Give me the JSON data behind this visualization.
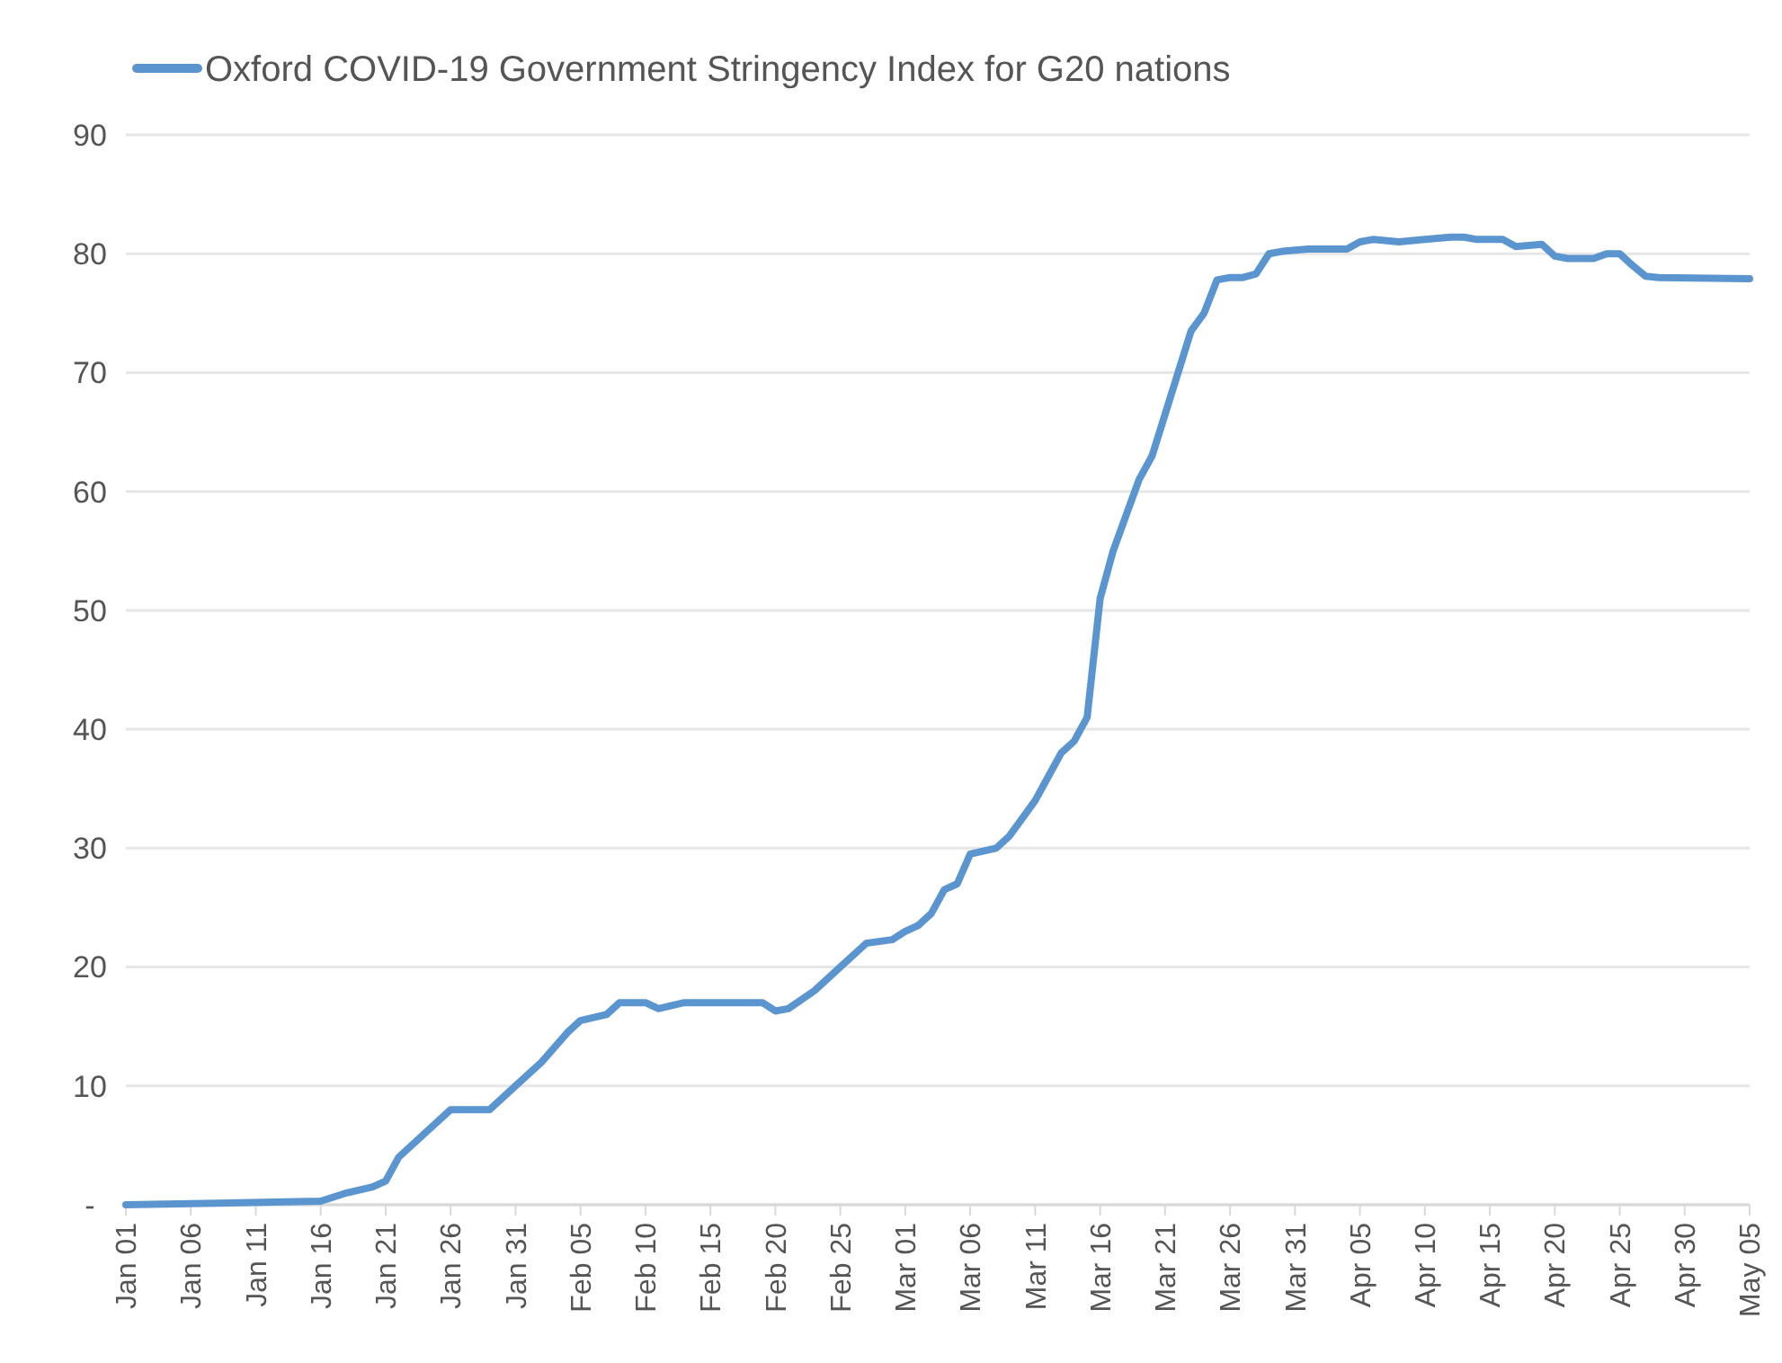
{
  "chart_data": {
    "type": "line",
    "legend": "top left",
    "grid": "y",
    "marker": "none",
    "line_style": "solid",
    "xlim": [
      "--01-01",
      "--05-05"
    ],
    "ylim": [
      0,
      90
    ],
    "yticks": [
      {
        "value": 0,
        "label": "-"
      },
      10,
      20,
      30,
      40,
      50,
      60,
      70,
      80,
      90
    ],
    "xticks": [
      {
        "value": "--01-01",
        "label": "Jan 01"
      },
      {
        "value": "--01-06",
        "label": "Jan 06"
      },
      {
        "value": "--01-11",
        "label": "Jan 11"
      },
      {
        "value": "--01-16",
        "label": "Jan 16"
      },
      {
        "value": "--01-21",
        "label": "Jan 21"
      },
      {
        "value": "--01-26",
        "label": "Jan 26"
      },
      {
        "value": "--01-31",
        "label": "Jan 31"
      },
      {
        "value": "--02-05",
        "label": "Feb 05"
      },
      {
        "value": "--02-10",
        "label": "Feb 10"
      },
      {
        "value": "--02-15",
        "label": "Feb 15"
      },
      {
        "value": "--02-20",
        "label": "Feb 20"
      },
      {
        "value": "--02-25",
        "label": "Feb 25"
      },
      {
        "value": "--03-01",
        "label": "Mar 01"
      },
      {
        "value": "--03-06",
        "label": "Mar 06"
      },
      {
        "value": "--03-11",
        "label": "Mar 11"
      },
      {
        "value": "--03-16",
        "label": "Mar 16"
      },
      {
        "value": "--03-21",
        "label": "Mar 21"
      },
      {
        "value": "--03-26",
        "label": "Mar 26"
      },
      {
        "value": "--03-31",
        "label": "Mar 31"
      },
      {
        "value": "--04-05",
        "label": "Apr 05"
      },
      {
        "value": "--04-10",
        "label": "Apr 10"
      },
      {
        "value": "--04-15",
        "label": "Apr 15"
      },
      {
        "value": "--04-20",
        "label": "Apr 20"
      },
      {
        "value": "--04-25",
        "label": "Apr 25"
      },
      {
        "value": "--04-30",
        "label": "Apr 30"
      },
      {
        "value": "--05-05",
        "label": "May 05"
      }
    ],
    "x": [
      "--01-01",
      "--01-16",
      "--01-18",
      "--01-20",
      "--01-21",
      "--01-22",
      "--01-23",
      "--01-24",
      "--01-26",
      "--01-29",
      "--01-31",
      "--02-02",
      "--02-04",
      "--02-05",
      "--02-07",
      "--02-08",
      "--02-10",
      "--02-11",
      "--02-13",
      "--02-19",
      "--02-20",
      "--02-21",
      "--02-23",
      "--02-24",
      "--02-25",
      "--02-27",
      "--02-29",
      "--03-01",
      "--03-02",
      "--03-03",
      "--03-04",
      "--03-05",
      "--03-06",
      "--03-08",
      "--03-09",
      "--03-10",
      "--03-11",
      "--03-12",
      "--03-13",
      "--03-14",
      "--03-15",
      "--03-16",
      "--03-17",
      "--03-18",
      "--03-19",
      "--03-20",
      "--03-21",
      "--03-22",
      "--03-23",
      "--03-24",
      "--03-25",
      "--03-26",
      "--03-27",
      "--03-28",
      "--03-29",
      "--03-30",
      "--04-01",
      "--04-04",
      "--04-05",
      "--04-06",
      "--04-08",
      "--04-10",
      "--04-12",
      "--04-13",
      "--04-14",
      "--04-16",
      "--04-17",
      "--04-19",
      "--04-20",
      "--04-21",
      "--04-23",
      "--04-24",
      "--04-25",
      "--04-26",
      "--04-27",
      "--04-28",
      "--05-05"
    ],
    "series": [
      {
        "name": "Oxford COVID-19 Government Stringency Index for G20 nations",
        "color": "#5b95cf",
        "values": [
          0,
          0.3,
          1,
          1.5,
          2,
          4,
          5,
          6,
          8,
          8,
          10,
          12,
          14.5,
          15.5,
          16,
          17,
          17,
          16.5,
          17,
          17,
          16.3,
          16.5,
          18,
          19,
          20,
          22,
          22.3,
          23,
          23.5,
          24.5,
          26.5,
          27,
          29.5,
          30,
          31,
          32.5,
          34,
          36,
          38,
          39,
          41,
          51,
          55,
          58,
          61,
          63,
          66.5,
          70,
          73.5,
          75,
          77.8,
          78,
          78,
          78.3,
          80,
          80.2,
          80.4,
          80.4,
          81,
          81.2,
          81,
          81.2,
          81.4,
          81.4,
          81.2,
          81.2,
          80.6,
          80.8,
          79.8,
          79.6,
          79.6,
          80,
          80,
          79,
          78.1,
          78,
          77.9
        ]
      }
    ]
  }
}
